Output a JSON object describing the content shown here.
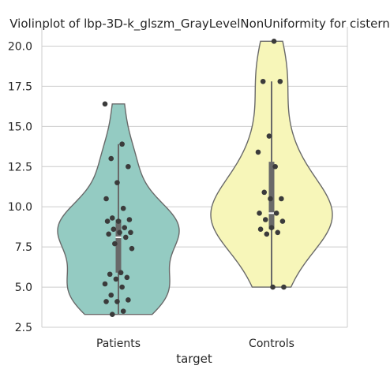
{
  "chart_data": {
    "type": "violin",
    "title": "Violinplot of lbp-3D-k_glszm_GrayLevelNonUniformity for cistern",
    "xlabel": "target",
    "ylabel": "",
    "ylim": [
      2.5,
      21.2
    ],
    "yticks": [
      2.5,
      5.0,
      7.5,
      10.0,
      12.5,
      15.0,
      17.5,
      20.0
    ],
    "ytick_labels": [
      "2.5",
      "5.0",
      "7.5",
      "10.0",
      "12.5",
      "15.0",
      "17.5",
      "20.0"
    ],
    "grid": true,
    "categories": [
      "Patients",
      "Controls"
    ],
    "series": [
      {
        "category": "Patients",
        "color": "#94cbc2",
        "min": 3.3,
        "max": 16.4,
        "q1": 5.9,
        "median": 8.1,
        "q3": 9.2,
        "whisker_low": 3.3,
        "whisker_high": 13.9,
        "points": [
          16.4,
          13.9,
          13.0,
          12.5,
          11.5,
          10.5,
          9.9,
          9.3,
          9.2,
          9.1,
          9.1,
          8.7,
          8.6,
          8.4,
          8.4,
          8.3,
          8.1,
          7.7,
          7.4,
          5.9,
          5.8,
          5.6,
          5.5,
          5.2,
          5.0,
          4.5,
          4.2,
          4.1,
          4.1,
          3.5,
          3.3
        ]
      },
      {
        "category": "Controls",
        "color": "#f7f6b9",
        "min": 5.0,
        "max": 20.3,
        "q1": 8.6,
        "median": 9.6,
        "q3": 12.8,
        "whisker_low": 5.0,
        "whisker_high": 17.8,
        "points": [
          20.3,
          17.8,
          17.8,
          14.4,
          13.4,
          12.5,
          10.9,
          10.5,
          10.5,
          9.6,
          9.6,
          9.2,
          9.1,
          8.7,
          8.6,
          8.4,
          8.3,
          5.0,
          5.0
        ]
      }
    ],
    "point_color": "#3b3b3b",
    "violin_edge_color": "#696969",
    "box_color": "#696969",
    "grid_color": "#cccccc"
  }
}
